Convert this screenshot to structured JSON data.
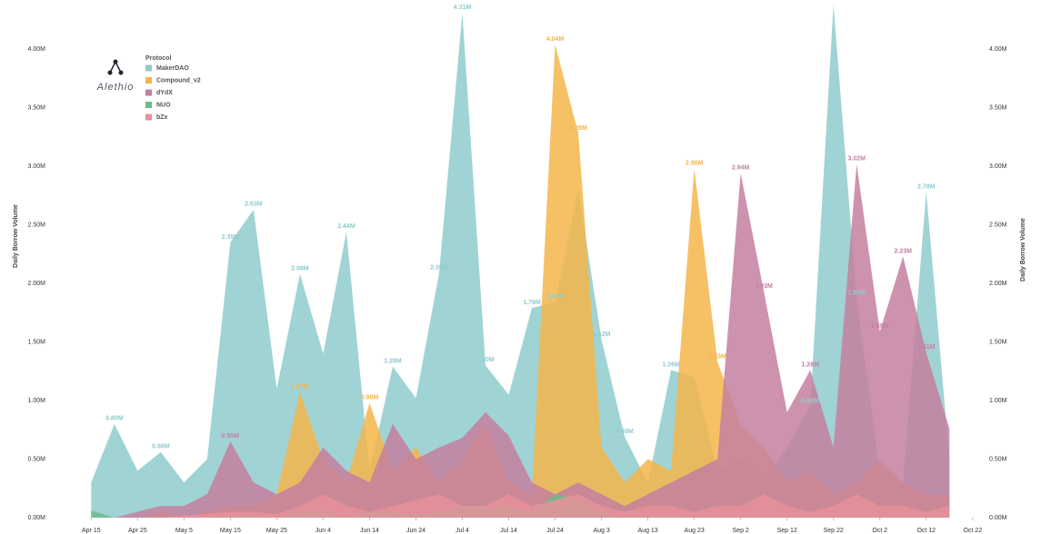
{
  "chart_data": {
    "type": "area",
    "y_label": "Daily Borrow Volume",
    "legend_title": "Protocol",
    "logo": "Alethio",
    "x": [
      0,
      5,
      10,
      15,
      20,
      25,
      30,
      35,
      40,
      45,
      50,
      55,
      60,
      65,
      70,
      75,
      80,
      85,
      90,
      95,
      100,
      105,
      110,
      115,
      120,
      125,
      130,
      135,
      140,
      145,
      150,
      155,
      160,
      165,
      170,
      175,
      180,
      185
    ],
    "xlim": [
      -3,
      192
    ],
    "xticks": [
      {
        "value": 0,
        "label": "Apr 15"
      },
      {
        "value": 10,
        "label": "Apr 25"
      },
      {
        "value": 20,
        "label": "May 5"
      },
      {
        "value": 30,
        "label": "May 15"
      },
      {
        "value": 40,
        "label": "May 25"
      },
      {
        "value": 50,
        "label": "Jun 4"
      },
      {
        "value": 60,
        "label": "Jun 14"
      },
      {
        "value": 70,
        "label": "Jun 24"
      },
      {
        "value": 80,
        "label": "Jul 4"
      },
      {
        "value": 90,
        "label": "Jul 14"
      },
      {
        "value": 100,
        "label": "Jul 24"
      },
      {
        "value": 110,
        "label": "Aug 3"
      },
      {
        "value": 120,
        "label": "Aug 13"
      },
      {
        "value": 130,
        "label": "Aug 23"
      },
      {
        "value": 140,
        "label": "Sep 2"
      },
      {
        "value": 150,
        "label": "Sep 12"
      },
      {
        "value": 160,
        "label": "Sep 22"
      },
      {
        "value": 170,
        "label": "Oct 2"
      },
      {
        "value": 180,
        "label": "Oct 12"
      },
      {
        "value": 190,
        "label": "Oct 22"
      }
    ],
    "ylim": [
      0,
      4.42
    ],
    "yticks": [
      {
        "value": 0,
        "label": "0.00M"
      },
      {
        "value": 0.5,
        "label": "0.50M"
      },
      {
        "value": 1,
        "label": "1.00M"
      },
      {
        "value": 1.5,
        "label": "1.50M"
      },
      {
        "value": 2,
        "label": "2.00M"
      },
      {
        "value": 2.5,
        "label": "2.50M"
      },
      {
        "value": 3,
        "label": "3.00M"
      },
      {
        "value": 3.5,
        "label": "3.50M"
      },
      {
        "value": 4,
        "label": "4.00M"
      }
    ],
    "series": [
      {
        "name": "MakerDAO",
        "color": "#8fcbcc",
        "values": [
          0.3,
          0.8,
          0.4,
          0.56,
          0.3,
          0.5,
          2.35,
          2.63,
          1.1,
          2.08,
          1.4,
          2.44,
          0.4,
          1.29,
          1.02,
          2.09,
          4.31,
          1.3,
          1.05,
          1.79,
          1.84,
          2.8,
          1.52,
          0.69,
          0.3,
          1.26,
          1.2,
          0.4,
          0.5,
          0.3,
          0.6,
          0.95,
          4.38,
          1.87,
          0.4,
          0.3,
          2.78,
          0.5
        ],
        "value_labels": [
          null,
          "0.80M",
          null,
          "0.56M",
          null,
          null,
          "2.35M",
          "2.63M",
          null,
          "2.08M",
          null,
          "2.44M",
          null,
          "1.29M",
          null,
          "2.09M",
          "4.31M",
          "1.30M",
          null,
          "1.79M",
          "1.84M",
          null,
          "1.52M",
          "0.69M",
          null,
          "1.26M",
          null,
          null,
          null,
          null,
          null,
          "0.95M",
          null,
          "1.87M",
          null,
          null,
          "2.78M",
          null
        ]
      },
      {
        "name": "Compound_v2",
        "color": "#f5b54a",
        "values": [
          0,
          0,
          0,
          0.05,
          0,
          0.05,
          0.1,
          0.1,
          0.2,
          1.07,
          0.5,
          0.3,
          0.98,
          0.4,
          0.6,
          0.3,
          0.5,
          0.8,
          0.3,
          0.2,
          4.04,
          3.28,
          0.6,
          0.3,
          0.5,
          0.4,
          2.98,
          1.33,
          0.8,
          0.6,
          0.3,
          0.4,
          0.2,
          0.3,
          0.5,
          0.3,
          0.2,
          0.19
        ],
        "value_labels": [
          null,
          null,
          null,
          null,
          null,
          null,
          null,
          null,
          null,
          "1.07M",
          null,
          null,
          "0.98M",
          null,
          null,
          null,
          null,
          null,
          null,
          null,
          "4.04M",
          "3.28M",
          null,
          null,
          null,
          null,
          "2.98M",
          "1.33M",
          null,
          null,
          null,
          null,
          null,
          null,
          null,
          null,
          null,
          null
        ]
      },
      {
        "name": "dYdX",
        "color": "#c47fa0",
        "values": [
          0,
          0,
          0.05,
          0.1,
          0.1,
          0.2,
          0.65,
          0.3,
          0.2,
          0.3,
          0.6,
          0.4,
          0.3,
          0.8,
          0.5,
          0.6,
          0.68,
          0.9,
          0.7,
          0.3,
          0.2,
          0.3,
          0.2,
          0.1,
          0.2,
          0.3,
          0.4,
          0.5,
          2.94,
          1.93,
          0.9,
          1.26,
          0.6,
          3.02,
          1.59,
          2.23,
          1.41,
          0.76
        ],
        "value_labels": [
          null,
          null,
          null,
          null,
          null,
          null,
          "0.65M",
          null,
          null,
          null,
          null,
          null,
          null,
          null,
          null,
          null,
          null,
          null,
          null,
          null,
          null,
          null,
          null,
          null,
          null,
          null,
          null,
          null,
          "2.94M",
          "1.93M",
          null,
          "1.26M",
          null,
          "3.02M",
          "1.59M",
          "2.23M",
          "1.41M",
          null
        ]
      },
      {
        "name": "NUO",
        "color": "#6dbb8a",
        "values": [
          0.06,
          0,
          0,
          0,
          0,
          0,
          0.02,
          0.02,
          0,
          0.05,
          0.05,
          0,
          0.05,
          0.05,
          0.03,
          0.05,
          0.1,
          0.1,
          0.1,
          0.05,
          0.2,
          0.16,
          0.05,
          0,
          0.02,
          0.02,
          0,
          0,
          0,
          0,
          0,
          0,
          0,
          0,
          0,
          0,
          0,
          0
        ]
      },
      {
        "name": "bZx",
        "color": "#e8909a",
        "values": [
          0,
          0,
          0,
          0,
          0.02,
          0.03,
          0.05,
          0.05,
          0.03,
          0.1,
          0.2,
          0.1,
          0.05,
          0.1,
          0.15,
          0.2,
          0.1,
          0.1,
          0.2,
          0.1,
          0.15,
          0.2,
          0.1,
          0.05,
          0.1,
          0.1,
          0.05,
          0.1,
          0.1,
          0.2,
          0.1,
          0.05,
          0.1,
          0.2,
          0.1,
          0.1,
          0.05,
          0.1
        ]
      }
    ]
  }
}
